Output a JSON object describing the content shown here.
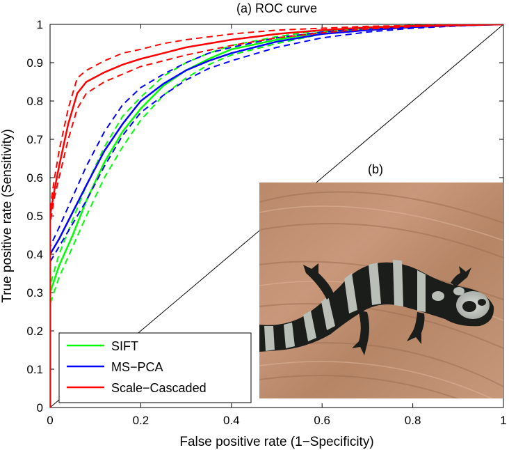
{
  "chart_data": {
    "type": "line",
    "title": "(a) ROC curve",
    "xlabel": "False positive rate (1−Specificity)",
    "ylabel": "True positive rate (Sensitivity)",
    "xlim": [
      0,
      1
    ],
    "ylim": [
      0,
      1
    ],
    "xticks": [
      0,
      0.2,
      0.4,
      0.6,
      0.8,
      1
    ],
    "yticks": [
      0,
      0.1,
      0.2,
      0.3,
      0.4,
      0.5,
      0.6,
      0.7,
      0.8,
      0.9,
      1
    ],
    "xtick_labels": [
      "0",
      "0.2",
      "0.4",
      "0.6",
      "0.8",
      "1"
    ],
    "ytick_labels": [
      "0",
      "0.1",
      "0.2",
      "0.3",
      "0.4",
      "0.5",
      "0.6",
      "0.7",
      "0.8",
      "0.9",
      "1"
    ],
    "grid": false,
    "legend_position": "bottom-left",
    "series": [
      {
        "name": "SIFT",
        "color": "#00ff00",
        "x": [
          0,
          0,
          0.02,
          0.05,
          0.08,
          0.12,
          0.16,
          0.2,
          0.25,
          0.3,
          0.35,
          0.4,
          0.5,
          0.6,
          0.7,
          0.8,
          0.9,
          1
        ],
        "y": [
          0,
          0.3,
          0.37,
          0.45,
          0.54,
          0.64,
          0.72,
          0.78,
          0.84,
          0.88,
          0.91,
          0.935,
          0.96,
          0.98,
          0.99,
          0.995,
          0.998,
          1
        ],
        "upper": [
          0,
          0.32,
          0.4,
          0.49,
          0.58,
          0.68,
          0.76,
          0.81,
          0.865,
          0.9,
          0.925,
          0.945,
          0.968,
          0.985,
          0.993,
          0.997,
          0.999,
          1
        ],
        "lower": [
          0,
          0.27,
          0.34,
          0.42,
          0.5,
          0.6,
          0.68,
          0.75,
          0.815,
          0.86,
          0.895,
          0.92,
          0.95,
          0.975,
          0.987,
          0.993,
          0.997,
          1
        ]
      },
      {
        "name": "MS−PCA",
        "color": "#0000ff",
        "x": [
          0,
          0,
          0.02,
          0.05,
          0.08,
          0.12,
          0.16,
          0.2,
          0.25,
          0.3,
          0.35,
          0.4,
          0.5,
          0.6,
          0.7,
          0.8,
          0.9,
          1
        ],
        "y": [
          0,
          0.4,
          0.44,
          0.51,
          0.58,
          0.67,
          0.74,
          0.8,
          0.845,
          0.88,
          0.905,
          0.925,
          0.955,
          0.975,
          0.985,
          0.993,
          0.997,
          1
        ],
        "upper": [
          0,
          0.42,
          0.47,
          0.55,
          0.63,
          0.72,
          0.79,
          0.835,
          0.87,
          0.9,
          0.925,
          0.94,
          0.965,
          0.98,
          0.99,
          0.995,
          0.998,
          1
        ],
        "lower": [
          0,
          0.38,
          0.42,
          0.48,
          0.54,
          0.63,
          0.71,
          0.77,
          0.815,
          0.855,
          0.885,
          0.905,
          0.94,
          0.965,
          0.98,
          0.99,
          0.996,
          1
        ]
      },
      {
        "name": "Scale−Cascaded",
        "color": "#ff0000",
        "x": [
          0,
          0,
          0.01,
          0.02,
          0.04,
          0.06,
          0.08,
          0.12,
          0.16,
          0.2,
          0.25,
          0.3,
          0.4,
          0.5,
          0.6,
          0.7,
          0.8,
          0.9,
          1
        ],
        "y": [
          0,
          0.5,
          0.57,
          0.63,
          0.74,
          0.82,
          0.85,
          0.875,
          0.895,
          0.91,
          0.925,
          0.94,
          0.96,
          0.975,
          0.985,
          0.992,
          0.996,
          0.998,
          1
        ],
        "upper": [
          0,
          0.52,
          0.6,
          0.67,
          0.78,
          0.86,
          0.88,
          0.905,
          0.925,
          0.935,
          0.95,
          0.96,
          0.975,
          0.985,
          0.99,
          0.995,
          0.997,
          0.999,
          1
        ],
        "lower": [
          0,
          0.48,
          0.55,
          0.6,
          0.7,
          0.78,
          0.82,
          0.85,
          0.87,
          0.89,
          0.905,
          0.92,
          0.945,
          0.965,
          0.978,
          0.988,
          0.994,
          0.997,
          1
        ]
      }
    ],
    "reference_line": {
      "x": [
        0,
        1
      ],
      "y": [
        0,
        1
      ]
    },
    "inset": {
      "label": "(b)",
      "description_icon": "salamander-photo"
    }
  }
}
